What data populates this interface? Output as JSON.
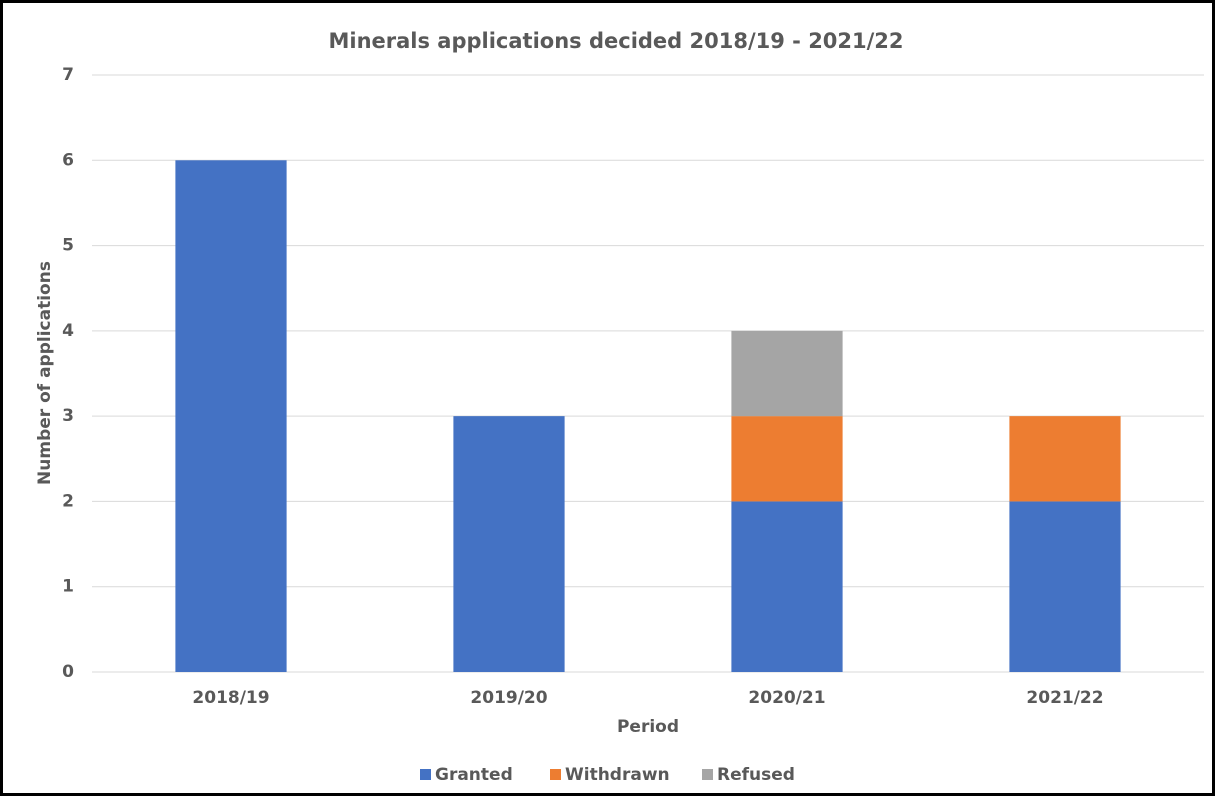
{
  "chart_data": {
    "type": "stacked_bar",
    "title": "Minerals applications decided 2018/19 - 2021/22",
    "x_label": "Period",
    "y_label": "Number of applications",
    "categories": [
      "2018/19",
      "2019/20",
      "2020/21",
      "2021/22"
    ],
    "series": [
      {
        "name": "Granted",
        "color": "#4472c4",
        "values": [
          6,
          3,
          2,
          2
        ]
      },
      {
        "name": "Withdrawn",
        "color": "#ed7d31",
        "values": [
          0,
          0,
          1,
          1
        ]
      },
      {
        "name": "Refused",
        "color": "#a5a5a5",
        "values": [
          0,
          0,
          1,
          0
        ]
      }
    ],
    "ylim": [
      0,
      7
    ],
    "yticks": [
      0,
      1,
      2,
      3,
      4,
      5,
      6,
      7
    ],
    "grid": true,
    "legend": "bottom"
  }
}
